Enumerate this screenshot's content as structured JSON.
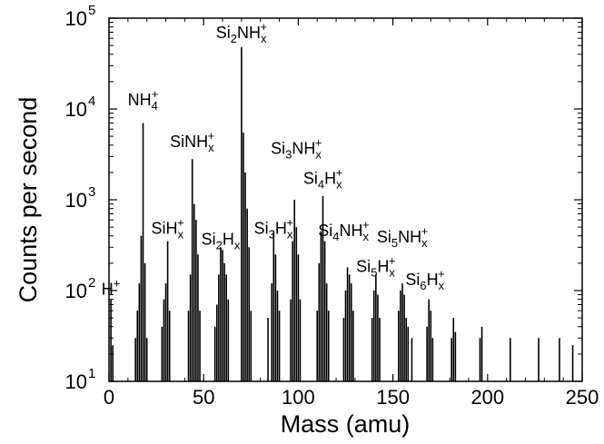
{
  "chart_data": {
    "type": "bar",
    "xlabel": "Mass (amu)",
    "ylabel": "Counts per second",
    "xlim": [
      0,
      250
    ],
    "ylim": [
      10,
      100000
    ],
    "yscale": "log",
    "grid": false,
    "x_ticks": [
      "0",
      "50",
      "100",
      "150",
      "200",
      "250"
    ],
    "y_ticks": [
      {
        "base": "10",
        "exp": "1"
      },
      {
        "base": "10",
        "exp": "2"
      },
      {
        "base": "10",
        "exp": "3"
      },
      {
        "base": "10",
        "exp": "4"
      },
      {
        "base": "10",
        "exp": "5"
      }
    ],
    "series": [
      {
        "values": [
          {
            "x": 1,
            "y": 80
          },
          {
            "x": 2,
            "y": 25
          },
          {
            "x": 14,
            "y": 30
          },
          {
            "x": 15,
            "y": 60
          },
          {
            "x": 16,
            "y": 120
          },
          {
            "x": 17,
            "y": 400
          },
          {
            "x": 18,
            "y": 7000
          },
          {
            "x": 19,
            "y": 200
          },
          {
            "x": 20,
            "y": 30
          },
          {
            "x": 28,
            "y": 40
          },
          {
            "x": 29,
            "y": 80
          },
          {
            "x": 30,
            "y": 120
          },
          {
            "x": 31,
            "y": 350
          },
          {
            "x": 32,
            "y": 60
          },
          {
            "x": 42,
            "y": 60
          },
          {
            "x": 43,
            "y": 150
          },
          {
            "x": 44,
            "y": 2800
          },
          {
            "x": 45,
            "y": 900
          },
          {
            "x": 46,
            "y": 600
          },
          {
            "x": 47,
            "y": 250
          },
          {
            "x": 48,
            "y": 60
          },
          {
            "x": 56,
            "y": 40
          },
          {
            "x": 57,
            "y": 70
          },
          {
            "x": 58,
            "y": 150
          },
          {
            "x": 59,
            "y": 300
          },
          {
            "x": 60,
            "y": 280
          },
          {
            "x": 61,
            "y": 200
          },
          {
            "x": 62,
            "y": 150
          },
          {
            "x": 63,
            "y": 80
          },
          {
            "x": 70,
            "y": 48000
          },
          {
            "x": 71,
            "y": 5500
          },
          {
            "x": 72,
            "y": 2000
          },
          {
            "x": 73,
            "y": 800
          },
          {
            "x": 74,
            "y": 300
          },
          {
            "x": 75,
            "y": 60
          },
          {
            "x": 84,
            "y": 50
          },
          {
            "x": 86,
            "y": 120
          },
          {
            "x": 87,
            "y": 450
          },
          {
            "x": 88,
            "y": 250
          },
          {
            "x": 89,
            "y": 100
          },
          {
            "x": 90,
            "y": 60
          },
          {
            "x": 96,
            "y": 80
          },
          {
            "x": 97,
            "y": 350
          },
          {
            "x": 98,
            "y": 1000
          },
          {
            "x": 99,
            "y": 500
          },
          {
            "x": 100,
            "y": 250
          },
          {
            "x": 101,
            "y": 80
          },
          {
            "x": 110,
            "y": 60
          },
          {
            "x": 111,
            "y": 200
          },
          {
            "x": 112,
            "y": 450
          },
          {
            "x": 113,
            "y": 1100
          },
          {
            "x": 114,
            "y": 350
          },
          {
            "x": 115,
            "y": 120
          },
          {
            "x": 116,
            "y": 60
          },
          {
            "x": 124,
            "y": 50
          },
          {
            "x": 125,
            "y": 100
          },
          {
            "x": 126,
            "y": 180
          },
          {
            "x": 127,
            "y": 150
          },
          {
            "x": 128,
            "y": 120
          },
          {
            "x": 129,
            "y": 60
          },
          {
            "x": 139,
            "y": 50
          },
          {
            "x": 140,
            "y": 100
          },
          {
            "x": 141,
            "y": 150
          },
          {
            "x": 142,
            "y": 90
          },
          {
            "x": 143,
            "y": 50
          },
          {
            "x": 153,
            "y": 60
          },
          {
            "x": 154,
            "y": 100
          },
          {
            "x": 155,
            "y": 120
          },
          {
            "x": 156,
            "y": 90
          },
          {
            "x": 157,
            "y": 50
          },
          {
            "x": 158,
            "y": 40
          },
          {
            "x": 160,
            "y": 30
          },
          {
            "x": 168,
            "y": 40
          },
          {
            "x": 169,
            "y": 80
          },
          {
            "x": 170,
            "y": 60
          },
          {
            "x": 171,
            "y": 30
          },
          {
            "x": 181,
            "y": 30
          },
          {
            "x": 182,
            "y": 50
          },
          {
            "x": 183,
            "y": 35
          },
          {
            "x": 196,
            "y": 30
          },
          {
            "x": 197,
            "y": 40
          },
          {
            "x": 212,
            "y": 30
          },
          {
            "x": 227,
            "y": 30
          },
          {
            "x": 238,
            "y": 30
          },
          {
            "x": 245,
            "y": 25
          }
        ]
      }
    ],
    "annotations": [
      {
        "x": 1,
        "y": 90,
        "parts": [
          [
            "t",
            "H"
          ],
          [
            "sup",
            "+"
          ]
        ]
      },
      {
        "x": 18,
        "y": 11000,
        "parts": [
          [
            "t",
            "NH"
          ],
          [
            "sub",
            "4"
          ],
          [
            "sup",
            "+"
          ]
        ]
      },
      {
        "x": 44,
        "y": 3800,
        "parts": [
          [
            "t",
            "SiNH"
          ],
          [
            "sub",
            "x"
          ],
          [
            "sup",
            "+"
          ]
        ]
      },
      {
        "x": 31,
        "y": 420,
        "parts": [
          [
            "t",
            "SiH"
          ],
          [
            "sub",
            "x"
          ],
          [
            "sup",
            "+"
          ]
        ]
      },
      {
        "x": 59,
        "y": 320,
        "parts": [
          [
            "t",
            "Si"
          ],
          [
            "sub",
            "2"
          ],
          [
            "t",
            "H"
          ],
          [
            "sub",
            "x"
          ]
        ]
      },
      {
        "x": 70,
        "y": 60000,
        "parts": [
          [
            "t",
            "Si"
          ],
          [
            "sub",
            "2"
          ],
          [
            "t",
            "NH"
          ],
          [
            "sub",
            "x"
          ],
          [
            "sup",
            "+"
          ]
        ]
      },
      {
        "x": 87,
        "y": 420,
        "parts": [
          [
            "t",
            "Si"
          ],
          [
            "sub",
            "3"
          ],
          [
            "t",
            "H"
          ],
          [
            "sub",
            "x"
          ],
          [
            "sup",
            "+"
          ]
        ]
      },
      {
        "x": 99,
        "y": 3200,
        "parts": [
          [
            "t",
            "Si"
          ],
          [
            "sub",
            "3"
          ],
          [
            "t",
            "NH"
          ],
          [
            "sub",
            "x"
          ],
          [
            "sup",
            "+"
          ]
        ]
      },
      {
        "x": 113,
        "y": 1500,
        "parts": [
          [
            "t",
            "Si"
          ],
          [
            "sub",
            "4"
          ],
          [
            "t",
            "H"
          ],
          [
            "sub",
            "x"
          ],
          [
            "sup",
            "+"
          ]
        ]
      },
      {
        "x": 124,
        "y": 400,
        "parts": [
          [
            "t",
            "Si"
          ],
          [
            "sub",
            "4"
          ],
          [
            "t",
            "NH"
          ],
          [
            "sub",
            "x"
          ],
          [
            "sup",
            "+"
          ]
        ]
      },
      {
        "x": 155,
        "y": 340,
        "parts": [
          [
            "t",
            "Si"
          ],
          [
            "sub",
            "5"
          ],
          [
            "t",
            "NH"
          ],
          [
            "sub",
            "x"
          ],
          [
            "sup",
            "+"
          ]
        ]
      },
      {
        "x": 141,
        "y": 160,
        "parts": [
          [
            "t",
            "Si"
          ],
          [
            "sub",
            "5"
          ],
          [
            "t",
            "H"
          ],
          [
            "sub",
            "x"
          ],
          [
            "sup",
            "+"
          ]
        ]
      },
      {
        "x": 167,
        "y": 115,
        "parts": [
          [
            "t",
            "Si"
          ],
          [
            "sub",
            "6"
          ],
          [
            "t",
            "H"
          ],
          [
            "sub",
            "x"
          ],
          [
            "sup",
            "+"
          ]
        ]
      }
    ]
  }
}
